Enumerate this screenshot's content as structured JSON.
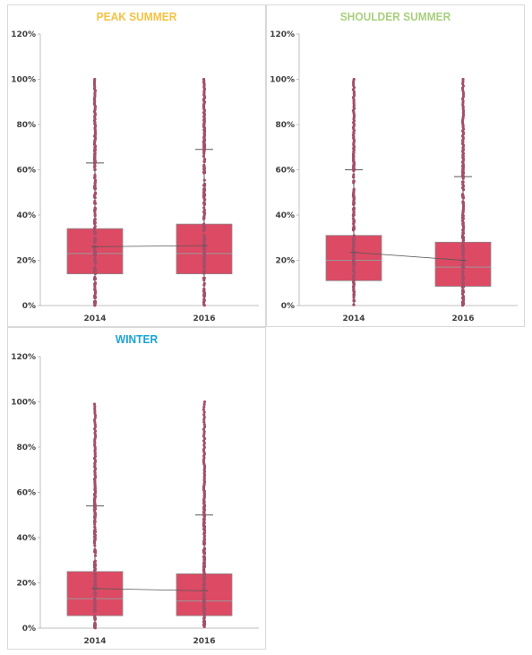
{
  "chart_data": [
    {
      "type": "box",
      "title": "PEAK SUMMER",
      "title_color": "#F5C242",
      "categories": [
        "2014",
        "2016"
      ],
      "ylim": [
        0,
        1.2
      ],
      "yticks": [
        0,
        0.2,
        0.4,
        0.6,
        0.8,
        1.0,
        1.2
      ],
      "ytick_labels": [
        "0%",
        "20%",
        "40%",
        "60%",
        "80%",
        "100%",
        "120%"
      ],
      "grid": false,
      "box_color": "#DC4A64",
      "point_color": "#A34E6A",
      "boxes": [
        {
          "category": "2014",
          "min": 0.0,
          "q1": 0.14,
          "median": 0.23,
          "q3": 0.34,
          "mean": 0.26,
          "whisker_high": 0.63,
          "outliers_range": [
            0.63,
            1.0
          ]
        },
        {
          "category": "2016",
          "min": 0.0,
          "q1": 0.14,
          "median": 0.23,
          "q3": 0.36,
          "mean": 0.265,
          "whisker_high": 0.69,
          "outliers_range": [
            0.69,
            1.0
          ]
        }
      ]
    },
    {
      "type": "box",
      "title": "SHOULDER SUMMER",
      "title_color": "#A9CF7E",
      "categories": [
        "2014",
        "2016"
      ],
      "ylim": [
        0,
        1.2
      ],
      "yticks": [
        0,
        0.2,
        0.4,
        0.6,
        0.8,
        1.0,
        1.2
      ],
      "ytick_labels": [
        "0%",
        "20%",
        "40%",
        "60%",
        "80%",
        "100%",
        "120%"
      ],
      "grid": false,
      "box_color": "#DC4A64",
      "point_color": "#A34E6A",
      "boxes": [
        {
          "category": "2014",
          "min": 0.0,
          "q1": 0.11,
          "median": 0.2,
          "q3": 0.31,
          "mean": 0.235,
          "whisker_high": 0.6,
          "outliers_range": [
            0.6,
            1.0
          ]
        },
        {
          "category": "2016",
          "min": 0.0,
          "q1": 0.085,
          "median": 0.17,
          "q3": 0.28,
          "mean": 0.2,
          "whisker_high": 0.57,
          "outliers_range": [
            0.57,
            1.0
          ]
        }
      ]
    },
    {
      "type": "box",
      "title": "WINTER",
      "title_color": "#1AA3D6",
      "categories": [
        "2014",
        "2016"
      ],
      "ylim": [
        0,
        1.2
      ],
      "yticks": [
        0,
        0.2,
        0.4,
        0.6,
        0.8,
        1.0,
        1.2
      ],
      "ytick_labels": [
        "0%",
        "20%",
        "40%",
        "60%",
        "80%",
        "100%",
        "120%"
      ],
      "grid": false,
      "box_color": "#DC4A64",
      "point_color": "#A34E6A",
      "boxes": [
        {
          "category": "2014",
          "min": 0.0,
          "q1": 0.055,
          "median": 0.13,
          "q3": 0.25,
          "mean": 0.175,
          "whisker_high": 0.54,
          "outliers_range": [
            0.54,
            0.99
          ]
        },
        {
          "category": "2016",
          "min": 0.0,
          "q1": 0.055,
          "median": 0.12,
          "q3": 0.24,
          "mean": 0.165,
          "whisker_high": 0.5,
          "outliers_range": [
            0.5,
            1.0
          ]
        }
      ]
    }
  ]
}
